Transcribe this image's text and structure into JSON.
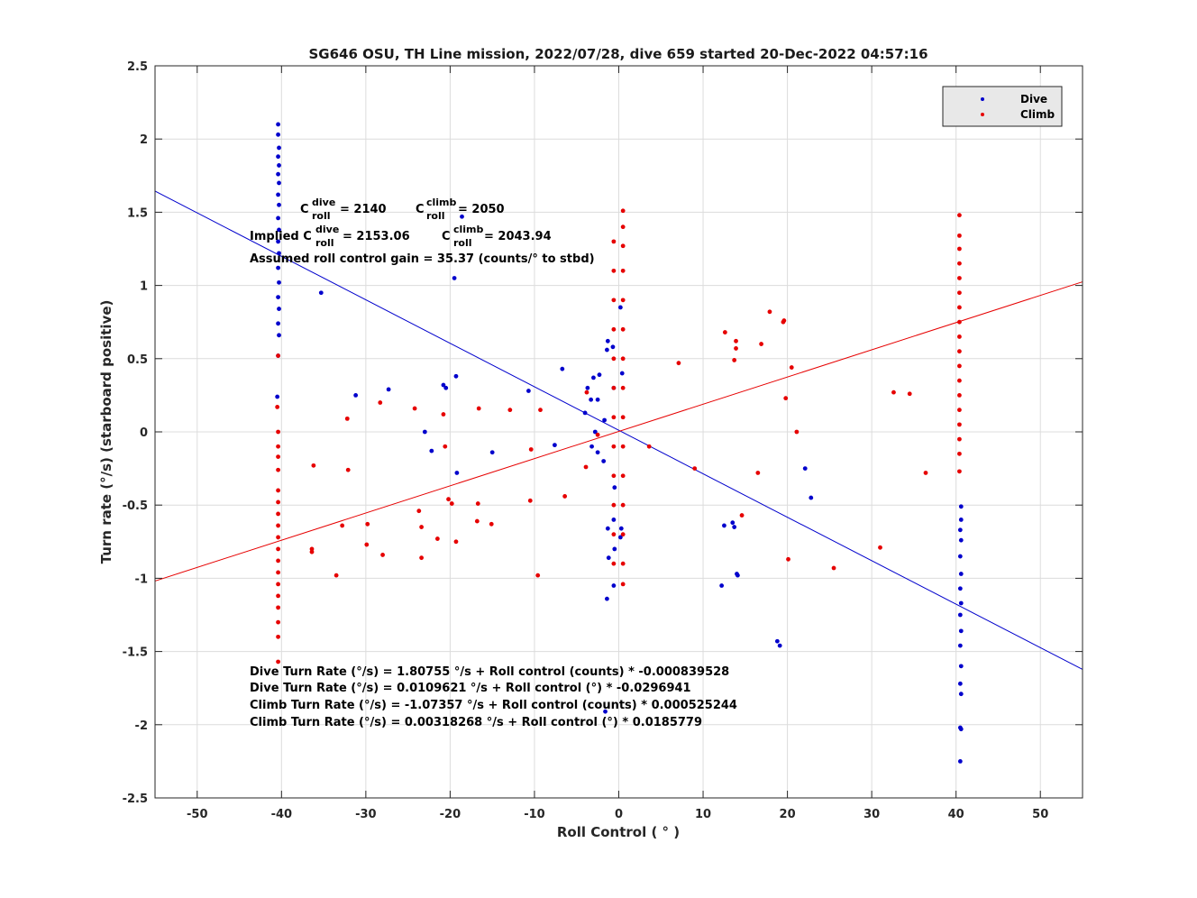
{
  "chart_data": {
    "type": "scatter",
    "title": "SG646 OSU, TH Line mission, 2022/07/28, dive 659 started 20-Dec-2022 04:57:16",
    "xlabel": "Roll Control ( ° )",
    "ylabel": "Turn rate (°/s) (starboard positive)",
    "xlim": [
      -55,
      55
    ],
    "ylim": [
      -2.5,
      2.5
    ],
    "xticks": [
      -50,
      -40,
      -30,
      -20,
      -10,
      0,
      10,
      20,
      30,
      40,
      50
    ],
    "yticks": [
      -2.5,
      -2,
      -1.5,
      -1,
      -0.5,
      0,
      0.5,
      1,
      1.5,
      2,
      2.5
    ],
    "grid": true,
    "legend_position": "top-right",
    "series": [
      {
        "name": "Dive",
        "color": "#0000cc",
        "points": [
          [
            -40.4,
            2.1
          ],
          [
            -40.4,
            2.03
          ],
          [
            -40.3,
            1.94
          ],
          [
            -40.4,
            1.88
          ],
          [
            -40.3,
            1.82
          ],
          [
            -40.4,
            1.76
          ],
          [
            -40.3,
            1.7
          ],
          [
            -40.4,
            1.62
          ],
          [
            -40.3,
            1.55
          ],
          [
            -40.4,
            1.46
          ],
          [
            -40.3,
            1.38
          ],
          [
            -40.4,
            1.3
          ],
          [
            -40.3,
            1.22
          ],
          [
            -40.4,
            1.12
          ],
          [
            -40.3,
            1.02
          ],
          [
            -40.4,
            0.92
          ],
          [
            -40.3,
            0.84
          ],
          [
            -40.4,
            0.74
          ],
          [
            -40.3,
            0.66
          ],
          [
            -40.4,
            0.52
          ],
          [
            -40.5,
            0.24
          ],
          [
            -35.3,
            0.95
          ],
          [
            -31.2,
            0.25
          ],
          [
            -27.3,
            0.29
          ],
          [
            -23.0,
            0.0
          ],
          [
            -22.2,
            -0.13
          ],
          [
            -20.8,
            0.32
          ],
          [
            -20.5,
            0.3
          ],
          [
            -19.5,
            1.05
          ],
          [
            -19.3,
            0.38
          ],
          [
            -19.2,
            -0.28
          ],
          [
            -18.6,
            1.47
          ],
          [
            -15.0,
            -0.14
          ],
          [
            -10.7,
            0.28
          ],
          [
            -7.6,
            -0.09
          ],
          [
            -6.7,
            0.43
          ],
          [
            -4.0,
            0.13
          ],
          [
            -3.7,
            0.3
          ],
          [
            -3.3,
            0.22
          ],
          [
            -3.0,
            0.37
          ],
          [
            -2.8,
            0.0
          ],
          [
            -2.5,
            0.22
          ],
          [
            -2.3,
            0.39
          ],
          [
            -3.2,
            -0.1
          ],
          [
            -2.5,
            -0.14
          ],
          [
            -1.8,
            -0.2
          ],
          [
            -1.7,
            0.08
          ],
          [
            -1.4,
            0.56
          ],
          [
            -1.3,
            0.62
          ],
          [
            -1.3,
            -0.66
          ],
          [
            -1.2,
            -0.86
          ],
          [
            -1.4,
            -1.14
          ],
          [
            -1.6,
            -1.91
          ],
          [
            -0.7,
            0.58
          ],
          [
            -0.6,
            0.3
          ],
          [
            -0.5,
            -0.38
          ],
          [
            -0.6,
            -0.6
          ],
          [
            -0.5,
            -0.8
          ],
          [
            -0.6,
            -1.05
          ],
          [
            0.2,
            0.85
          ],
          [
            0.4,
            0.4
          ],
          [
            0.3,
            -0.66
          ],
          [
            0.2,
            -0.72
          ],
          [
            12.2,
            -1.05
          ],
          [
            12.5,
            -0.64
          ],
          [
            13.5,
            -0.62
          ],
          [
            13.7,
            -0.65
          ],
          [
            14.0,
            -0.97
          ],
          [
            14.1,
            -0.98
          ],
          [
            18.8,
            -1.43
          ],
          [
            19.1,
            -1.46
          ],
          [
            22.1,
            -0.25
          ],
          [
            22.8,
            -0.45
          ],
          [
            40.6,
            -0.51
          ],
          [
            40.6,
            -0.6
          ],
          [
            40.5,
            -0.67
          ],
          [
            40.6,
            -0.74
          ],
          [
            40.5,
            -0.85
          ],
          [
            40.6,
            -0.97
          ],
          [
            40.5,
            -1.07
          ],
          [
            40.6,
            -1.17
          ],
          [
            40.5,
            -1.25
          ],
          [
            40.6,
            -1.36
          ],
          [
            40.5,
            -1.46
          ],
          [
            40.6,
            -1.6
          ],
          [
            40.5,
            -1.72
          ],
          [
            40.6,
            -1.79
          ],
          [
            40.5,
            -2.02
          ],
          [
            40.6,
            -2.03
          ],
          [
            40.5,
            -2.25
          ]
        ]
      },
      {
        "name": "Climb",
        "color": "#e60000",
        "points": [
          [
            -40.4,
            0.52
          ],
          [
            -40.5,
            0.17
          ],
          [
            -40.4,
            0.0
          ],
          [
            -40.4,
            -0.1
          ],
          [
            -40.4,
            -0.17
          ],
          [
            -40.4,
            -0.26
          ],
          [
            -40.4,
            -0.4
          ],
          [
            -40.4,
            -0.48
          ],
          [
            -40.4,
            -0.56
          ],
          [
            -40.4,
            -0.64
          ],
          [
            -40.4,
            -0.72
          ],
          [
            -40.4,
            -0.8
          ],
          [
            -40.4,
            -0.88
          ],
          [
            -40.4,
            -0.96
          ],
          [
            -40.4,
            -1.04
          ],
          [
            -40.4,
            -1.12
          ],
          [
            -40.4,
            -1.2
          ],
          [
            -40.4,
            -1.3
          ],
          [
            -40.4,
            -1.4
          ],
          [
            -40.4,
            -1.57
          ],
          [
            -36.2,
            -0.23
          ],
          [
            -36.4,
            -0.8
          ],
          [
            -36.4,
            -0.82
          ],
          [
            -33.5,
            -0.98
          ],
          [
            -32.8,
            -0.64
          ],
          [
            -32.2,
            0.09
          ],
          [
            -32.1,
            -0.26
          ],
          [
            -29.8,
            -0.63
          ],
          [
            -29.9,
            -0.77
          ],
          [
            -28.3,
            0.2
          ],
          [
            -28.0,
            -0.84
          ],
          [
            -24.2,
            0.16
          ],
          [
            -23.7,
            -0.54
          ],
          [
            -23.4,
            -0.65
          ],
          [
            -23.4,
            -0.86
          ],
          [
            -21.5,
            -0.73
          ],
          [
            -20.6,
            -0.1
          ],
          [
            -20.8,
            0.12
          ],
          [
            -20.2,
            -0.46
          ],
          [
            -19.8,
            -0.49
          ],
          [
            -19.3,
            -0.75
          ],
          [
            -16.7,
            -0.49
          ],
          [
            -16.8,
            -0.61
          ],
          [
            -16.6,
            0.16
          ],
          [
            -15.1,
            -0.63
          ],
          [
            -12.9,
            0.15
          ],
          [
            -10.4,
            -0.12
          ],
          [
            -10.5,
            -0.47
          ],
          [
            -9.6,
            -0.98
          ],
          [
            -9.3,
            0.15
          ],
          [
            -6.4,
            -0.44
          ],
          [
            -3.9,
            -0.24
          ],
          [
            -3.8,
            0.27
          ],
          [
            -2.5,
            -0.02
          ],
          [
            -0.6,
            1.3
          ],
          [
            -0.6,
            1.1
          ],
          [
            -0.6,
            0.9
          ],
          [
            -0.6,
            0.7
          ],
          [
            -0.6,
            0.5
          ],
          [
            -0.6,
            0.3
          ],
          [
            -0.6,
            0.1
          ],
          [
            -0.6,
            -0.1
          ],
          [
            -0.6,
            -0.3
          ],
          [
            -0.6,
            -0.5
          ],
          [
            -0.6,
            -0.7
          ],
          [
            -0.6,
            -0.9
          ],
          [
            0.5,
            1.51
          ],
          [
            0.5,
            1.4
          ],
          [
            0.5,
            1.27
          ],
          [
            0.5,
            1.1
          ],
          [
            0.5,
            0.9
          ],
          [
            0.5,
            0.7
          ],
          [
            0.5,
            0.5
          ],
          [
            0.5,
            0.3
          ],
          [
            0.5,
            0.1
          ],
          [
            0.5,
            -0.1
          ],
          [
            0.5,
            -0.3
          ],
          [
            0.5,
            -0.5
          ],
          [
            0.5,
            -0.7
          ],
          [
            0.5,
            -0.9
          ],
          [
            0.5,
            -1.04
          ],
          [
            3.6,
            -0.1
          ],
          [
            7.1,
            0.47
          ],
          [
            9.0,
            -0.25
          ],
          [
            12.6,
            0.68
          ],
          [
            13.7,
            0.49
          ],
          [
            13.9,
            0.57
          ],
          [
            13.9,
            0.62
          ],
          [
            14.6,
            -0.57
          ],
          [
            16.5,
            -0.28
          ],
          [
            16.9,
            0.6
          ],
          [
            17.9,
            0.82
          ],
          [
            19.5,
            0.75
          ],
          [
            19.6,
            0.76
          ],
          [
            19.8,
            0.23
          ],
          [
            20.1,
            -0.87
          ],
          [
            20.5,
            0.44
          ],
          [
            21.1,
            0.0
          ],
          [
            25.5,
            -0.93
          ],
          [
            31.0,
            -0.79
          ],
          [
            32.6,
            0.27
          ],
          [
            34.5,
            0.26
          ],
          [
            36.4,
            -0.28
          ],
          [
            40.4,
            1.48
          ],
          [
            40.4,
            1.34
          ],
          [
            40.4,
            1.25
          ],
          [
            40.4,
            1.15
          ],
          [
            40.4,
            1.05
          ],
          [
            40.4,
            0.95
          ],
          [
            40.4,
            0.85
          ],
          [
            40.4,
            0.75
          ],
          [
            40.4,
            0.65
          ],
          [
            40.4,
            0.55
          ],
          [
            40.4,
            0.45
          ],
          [
            40.4,
            0.35
          ],
          [
            40.4,
            0.25
          ],
          [
            40.4,
            0.15
          ],
          [
            40.4,
            0.05
          ],
          [
            40.4,
            -0.05
          ],
          [
            40.4,
            -0.15
          ],
          [
            40.4,
            -0.27
          ]
        ]
      }
    ],
    "fit_lines": [
      {
        "name": "Dive fit",
        "color": "#0000cc",
        "intercept": 0.0109621,
        "slope": -0.0296941
      },
      {
        "name": "Climb fit",
        "color": "#e60000",
        "intercept": 0.00318268,
        "slope": 0.0185779
      }
    ],
    "annotations": {
      "c_dive_base": "C",
      "c_dive_sup": "dive",
      "c_dive_sub": "roll",
      "c_dive_val": " = 2140",
      "c_climb_base": "C",
      "c_climb_sup": "climb",
      "c_climb_sub": "roll",
      "c_climb_val": " = 2050",
      "implied_prefix": "Implied C",
      "implied_dive_sup": "dive",
      "implied_dive_sub": "roll",
      "implied_dive_val": " = 2153.06",
      "implied_climb_base": "C",
      "implied_climb_sup": "climb",
      "implied_climb_sub": "roll",
      "implied_climb_val": " = 2043.94",
      "gain": "Assumed roll control gain = 35.37 (counts/° to stbd)",
      "eq1": "Dive Turn Rate (°/s) = 1.80755 °/s + Roll control (counts) * -0.000839528",
      "eq2": "Dive Turn Rate (°/s) = 0.0109621 °/s + Roll control (°) * -0.0296941",
      "eq3": "Climb Turn Rate (°/s) = -1.07357 °/s + Roll control (counts) * 0.000525244",
      "eq4": "Climb Turn Rate (°/s) = 0.00318268 °/s + Roll control (°) * 0.0185779"
    }
  }
}
